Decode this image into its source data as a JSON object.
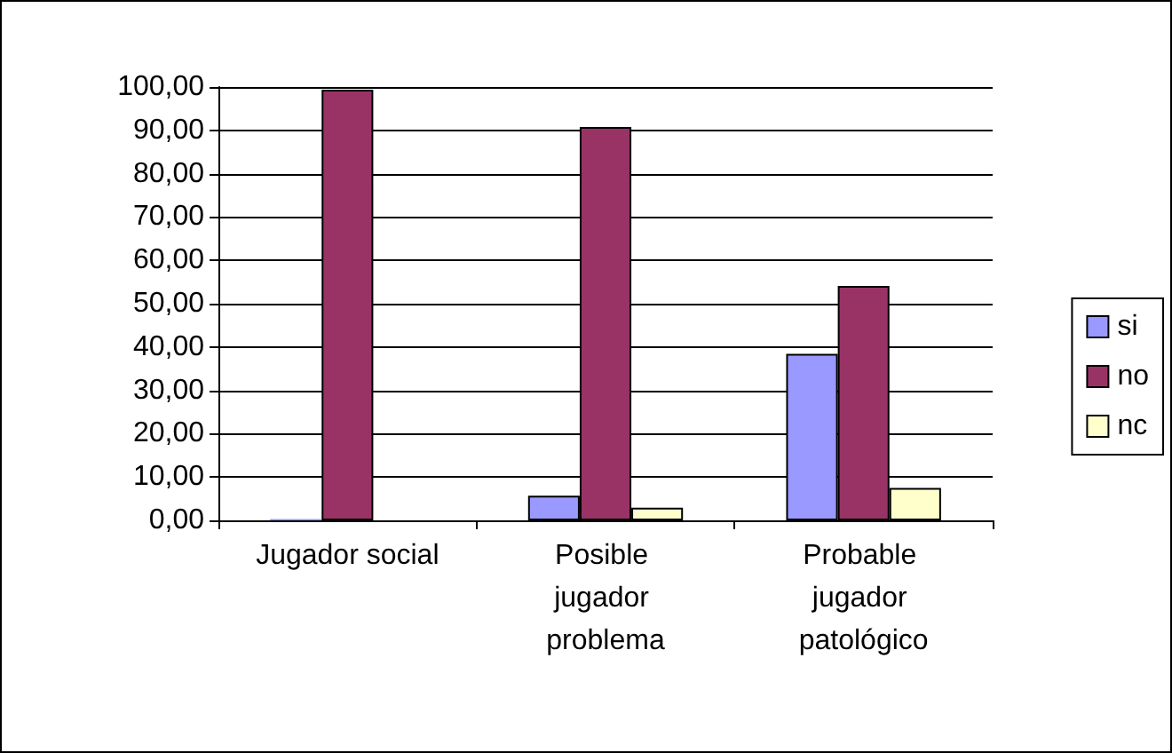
{
  "chart_data": {
    "type": "bar",
    "categories": [
      "Jugador social",
      "Posible jugador problema",
      "Probable jugador patológico"
    ],
    "series": [
      {
        "name": "si",
        "color": "#9999ff",
        "values": [
          0.3,
          5.7,
          38.4
        ]
      },
      {
        "name": "no",
        "color": "#993366",
        "values": [
          99.4,
          90.8,
          54.1
        ]
      },
      {
        "name": "nc",
        "color": "#ffffcc",
        "values": [
          null,
          2.9,
          7.5
        ]
      }
    ],
    "ylim": [
      0,
      100
    ],
    "yticks": [
      {
        "value": 0,
        "label": "0,00"
      },
      {
        "value": 10,
        "label": "10,00"
      },
      {
        "value": 20,
        "label": "20,00"
      },
      {
        "value": 30,
        "label": "30,00"
      },
      {
        "value": 40,
        "label": "40,00"
      },
      {
        "value": 50,
        "label": "50,00"
      },
      {
        "value": 60,
        "label": "60,00"
      },
      {
        "value": 70,
        "label": "70,00"
      },
      {
        "value": 80,
        "label": "80,00"
      },
      {
        "value": 90,
        "label": "90,00"
      },
      {
        "value": 100,
        "label": "100,00"
      }
    ],
    "grid": "y",
    "legend": "right"
  }
}
